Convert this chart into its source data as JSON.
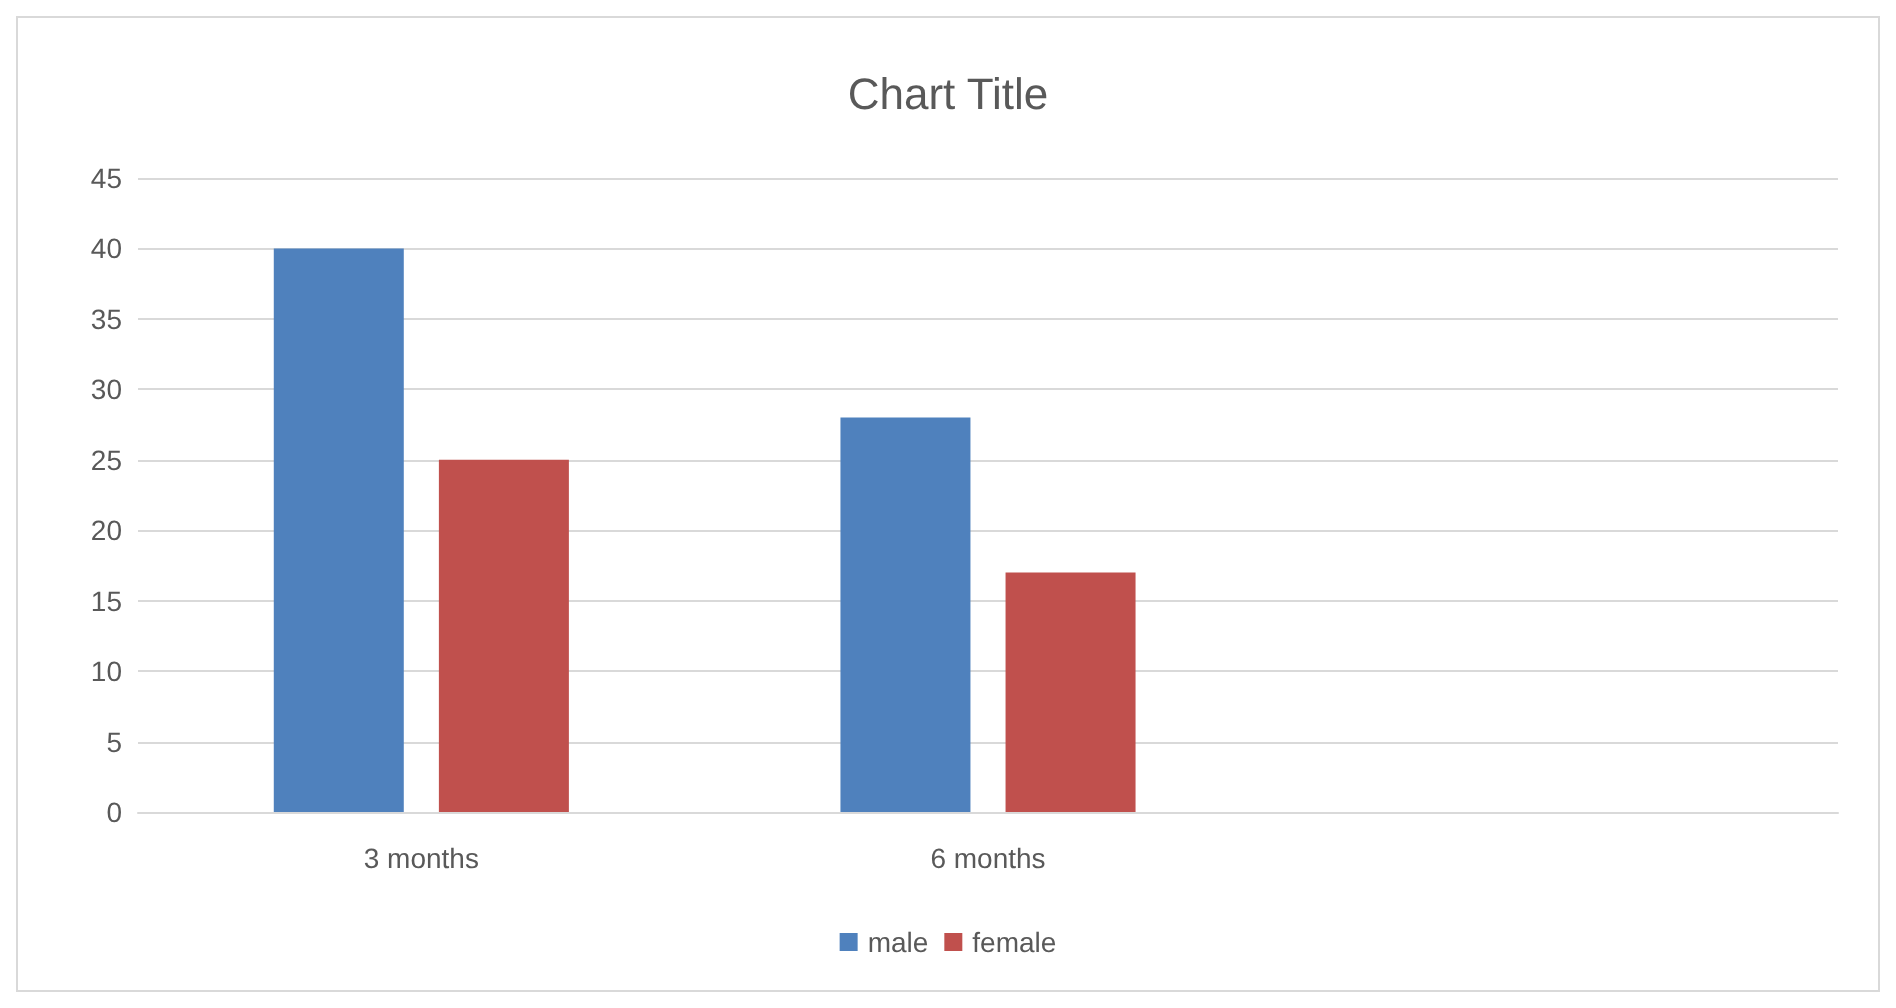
{
  "chart_data": {
    "type": "bar",
    "title": "Chart Title",
    "categories": [
      "3 months",
      "6 months",
      null
    ],
    "series": [
      {
        "name": "male",
        "color": "#4f81bd",
        "values": [
          40,
          28,
          null
        ]
      },
      {
        "name": "female",
        "color": "#c0504d",
        "values": [
          25,
          17,
          null
        ]
      }
    ],
    "ylim": [
      0,
      45
    ],
    "yticks": [
      0,
      5,
      10,
      15,
      20,
      25,
      30,
      35,
      40,
      45
    ],
    "grid": "y",
    "legend": "bottom"
  }
}
